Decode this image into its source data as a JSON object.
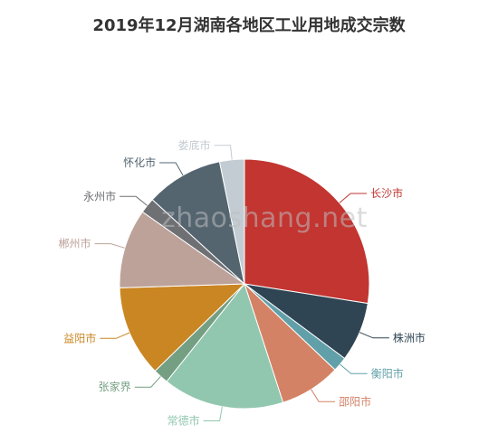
{
  "chart_data": {
    "type": "pie",
    "title": "2019年12月湖南各地区工业用地成交宗数",
    "slices": [
      {
        "name": "长沙市",
        "value": 27.5,
        "color": "#c23531"
      },
      {
        "name": "株洲市",
        "value": 7.7,
        "color": "#2f4554"
      },
      {
        "name": "衡阳市",
        "value": 1.9,
        "color": "#61a0a8"
      },
      {
        "name": "邵阳市",
        "value": 7.9,
        "color": "#d48265"
      },
      {
        "name": "常德市",
        "value": 15.7,
        "color": "#91c7ae"
      },
      {
        "name": "张家界",
        "value": 2.0,
        "color": "#749f83"
      },
      {
        "name": "益阳市",
        "value": 11.8,
        "color": "#ca8622"
      },
      {
        "name": "郴州市",
        "value": 10.3,
        "color": "#bda29a"
      },
      {
        "name": "永州市",
        "value": 2.0,
        "color": "#6e7074"
      },
      {
        "name": "怀化市",
        "value": 10.0,
        "color": "#546570"
      },
      {
        "name": "娄底市",
        "value": 3.2,
        "color": "#c4ccd3"
      }
    ]
  },
  "watermark": "zhaoshang.net"
}
